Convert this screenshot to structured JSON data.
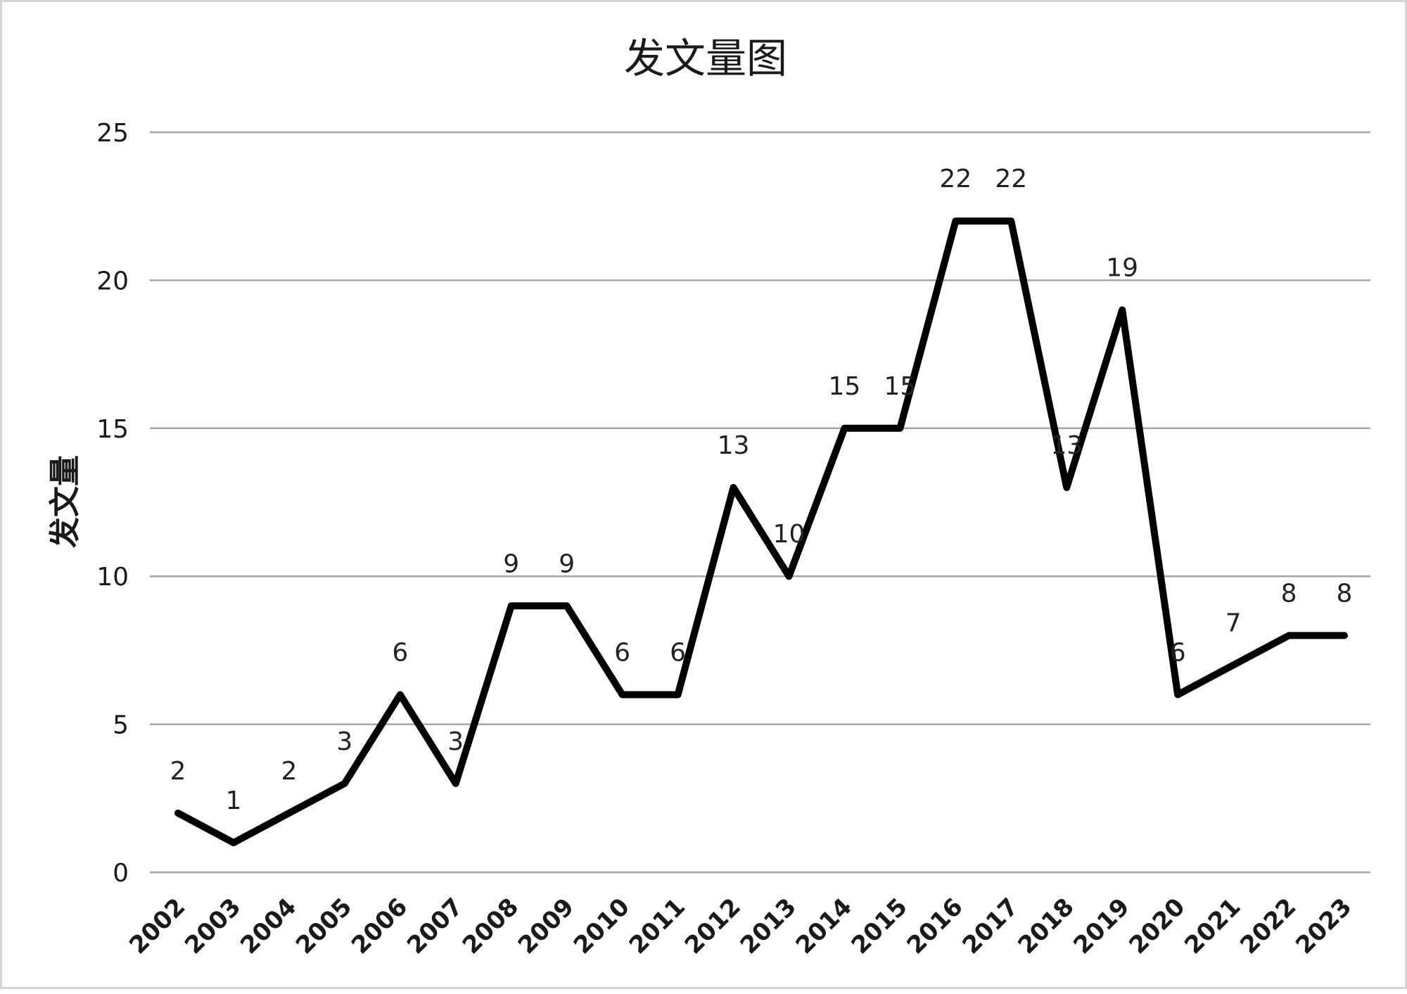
{
  "chart_data": {
    "type": "line",
    "title": "发文量图",
    "xlabel": "",
    "ylabel": "发文量",
    "categories": [
      "2002",
      "2003",
      "2004",
      "2005",
      "2006",
      "2007",
      "2008",
      "2009",
      "2010",
      "2011",
      "2012",
      "2013",
      "2014",
      "2015",
      "2016",
      "2017",
      "2018",
      "2019",
      "2020",
      "2021",
      "2022",
      "2023"
    ],
    "series": [
      {
        "values": [
          2,
          1,
          2,
          3,
          6,
          3,
          9,
          9,
          6,
          6,
          13,
          10,
          15,
          15,
          22,
          22,
          13,
          19,
          6,
          7,
          8,
          8
        ],
        "color": "#000000"
      }
    ],
    "ylim": [
      0,
      25
    ],
    "yticks": [
      "0",
      "5",
      "10",
      "15",
      "20",
      "25"
    ],
    "grid": true,
    "data_labels": true,
    "legend": "none"
  }
}
